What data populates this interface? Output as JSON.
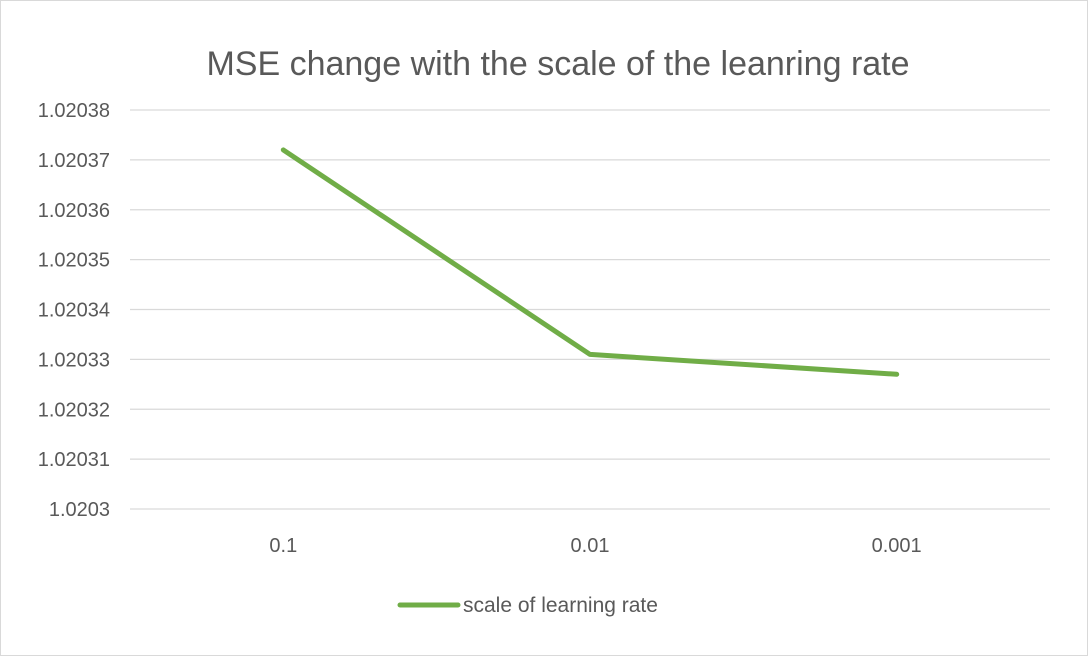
{
  "chart_data": {
    "type": "line",
    "title": "MSE change with the scale of the leanring rate",
    "xlabel": "",
    "ylabel": "",
    "categories": [
      "0.1",
      "0.01",
      "0.001"
    ],
    "series": [
      {
        "name": "scale of learning rate",
        "values": [
          1.020372,
          1.020331,
          1.020327
        ],
        "color": "#70AD47"
      }
    ],
    "ylim": [
      1.0203,
      1.02038
    ],
    "yticks": [
      1.0203,
      1.02031,
      1.02032,
      1.02033,
      1.02034,
      1.02035,
      1.02036,
      1.02037,
      1.02038
    ],
    "ytick_labels": [
      "1.0203",
      "1.02031",
      "1.02032",
      "1.02033",
      "1.02034",
      "1.02035",
      "1.02036",
      "1.02037",
      "1.02038"
    ],
    "grid": true,
    "legend_position": "bottom",
    "colors": {
      "gridline": "#D9D9D9",
      "text": "#595959",
      "border": "#D9D9D9"
    }
  }
}
